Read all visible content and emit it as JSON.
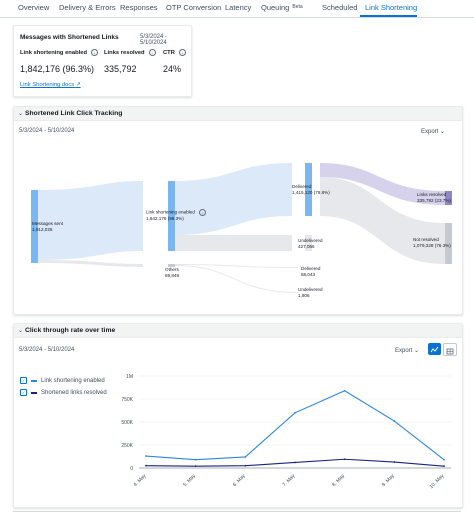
{
  "tabs": [
    {
      "label": "Overview"
    },
    {
      "label": "Delivery & Errors"
    },
    {
      "label": "Responses"
    },
    {
      "label": "OTP Conversion"
    },
    {
      "label": "Latency"
    },
    {
      "label": "Queuing",
      "badge": "Beta"
    },
    {
      "label": "Scheduled"
    },
    {
      "label": "Link Shortening",
      "active": true
    }
  ],
  "summary": {
    "title": "Messages with Shortened Links",
    "date_range": "5/3/2024 - 5/10/2024",
    "metrics": [
      {
        "label": "Link shortening enabled",
        "value": "1,842,176 (96.3%)"
      },
      {
        "label": "Links resolved",
        "value": "335,792"
      },
      {
        "label": "CTR",
        "value": "24%"
      }
    ],
    "docs_link": "Link Shortening docs"
  },
  "sankey_panel": {
    "title": "Shortened Link Click Tracking",
    "date_range": "5/3/2024 - 5/10/2024",
    "export_label": "Export",
    "nodes": [
      {
        "name": "Messages sent",
        "value": "1,912,025"
      },
      {
        "name": "Link shortening enabled",
        "value": "1,842,176 (96.3%)"
      },
      {
        "name": "Others",
        "value": "69,849"
      },
      {
        "name": "Delivered",
        "value": "1,415,120 (76.8%)"
      },
      {
        "name": "Undelivered",
        "value": "427,056"
      },
      {
        "name": "Delivered",
        "value": "68,043"
      },
      {
        "name": "Undelivered",
        "value": "1,806"
      },
      {
        "name": "Links resolved",
        "value": "335,792 (23.7%)"
      },
      {
        "name": "Not resolved",
        "value": "1,079,328 (76.3%)"
      }
    ],
    "colors": {
      "node": "#7ab6f0",
      "flow": "#dbe9f9",
      "gray": "#e6e8eb",
      "gray_node": "#c6cad0",
      "resolved": "#a9a3d4",
      "resolved_node": "#8f86c6"
    }
  },
  "ctr_panel": {
    "title": "Click through rate over time",
    "date_range": "5/3/2024 - 5/10/2024",
    "export_label": "Export",
    "legend": [
      {
        "label": "Link shortening enabled",
        "color": "#2e86de"
      },
      {
        "label": "Shortened links resolved",
        "color": "#1a237e"
      }
    ]
  },
  "chart_data": {
    "type": "line",
    "x": [
      "4. May",
      "5. May",
      "6. May",
      "7. May",
      "8. May",
      "9. May",
      "10. May"
    ],
    "y_ticks": [
      "0",
      "250K",
      "500K",
      "750K",
      "1M"
    ],
    "ylim": [
      0,
      1000000
    ],
    "series": [
      {
        "name": "Link shortening enabled",
        "values": [
          130000,
          90000,
          120000,
          600000,
          840000,
          510000,
          90000
        ]
      },
      {
        "name": "Shortened links resolved",
        "values": [
          25000,
          20000,
          25000,
          60000,
          95000,
          65000,
          20000
        ]
      }
    ]
  }
}
